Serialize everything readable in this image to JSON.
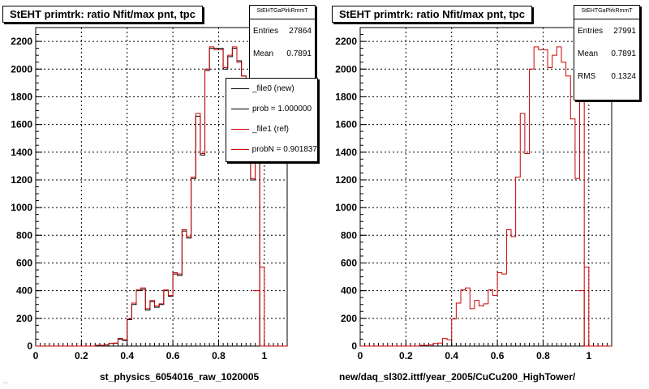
{
  "footer_text": "...",
  "colors": {
    "new": "#000000",
    "ref": "#cc0000",
    "grid": "#000000"
  },
  "chart_data": [
    {
      "type": "line",
      "title": "StEHT primtrk: ratio Nfit/max pnt, tpc",
      "xlabel": "st_physics_6054016_raw_1020005",
      "xlim": [
        0,
        1.1
      ],
      "ylim": [
        0,
        2300
      ],
      "xticks": [
        "0",
        "0.2",
        "0.4",
        "0.6",
        "0.8",
        "1"
      ],
      "yticks": [
        "0",
        "200",
        "400",
        "600",
        "800",
        "1000",
        "1200",
        "1400",
        "1600",
        "1800",
        "2000",
        "2200"
      ],
      "grid": true,
      "stats": {
        "name": "StEHTGaPlrkRmmT",
        "rows": [
          {
            "label": "Entries",
            "value": "27864"
          },
          {
            "label": "Mean",
            "value": "0.7891"
          }
        ]
      },
      "legend": [
        {
          "label": "_file0 (new)",
          "color": "#000000"
        },
        {
          "label": "prob = 1.000000",
          "color": "#000000"
        },
        {
          "label": "_file1 (ref)",
          "color": "#cc0000"
        },
        {
          "label": "probN = 0.901837",
          "color": "#cc0000"
        }
      ],
      "bin_edges": [
        0.26,
        0.28,
        0.3,
        0.32,
        0.34,
        0.36,
        0.38,
        0.4,
        0.42,
        0.44,
        0.46,
        0.48,
        0.5,
        0.52,
        0.54,
        0.56,
        0.58,
        0.6,
        0.62,
        0.64,
        0.66,
        0.68,
        0.7,
        0.72,
        0.74,
        0.76,
        0.78,
        0.8,
        0.82,
        0.84,
        0.86,
        0.88,
        0.9,
        0.92,
        0.94,
        0.96,
        0.98,
        1.0
      ],
      "series": [
        {
          "name": "_file0 (new)",
          "values": [
            5,
            5,
            8,
            20,
            20,
            50,
            40,
            190,
            300,
            400,
            410,
            260,
            320,
            280,
            300,
            400,
            360,
            520,
            510,
            830,
            780,
            1210,
            1660,
            1380,
            1990,
            2150,
            2150,
            2150,
            2000,
            2090,
            2150,
            2060,
            1950,
            1630,
            1200,
            1950,
            0
          ]
        },
        {
          "name": "_file1 (ref)",
          "values": [
            5,
            5,
            8,
            20,
            22,
            55,
            45,
            195,
            310,
            405,
            420,
            270,
            330,
            290,
            305,
            405,
            365,
            530,
            520,
            840,
            790,
            1220,
            1680,
            1390,
            2000,
            2160,
            2140,
            2140,
            2010,
            2100,
            2160,
            2050,
            1950,
            1640,
            1210,
            1960,
            0
          ]
        }
      ],
      "tail": {
        "x": 0.98,
        "values": [
          570,
          400
        ]
      }
    },
    {
      "type": "line",
      "title": "StEHT primtrk: ratio Nfit/max pnt, tpc",
      "xlabel": "new/daq_sl302.ittf/year_2005/CuCu200_HighTower/",
      "xlim": [
        0,
        1.1
      ],
      "ylim": [
        0,
        2300
      ],
      "xticks": [
        "0",
        "0.2",
        "0.4",
        "0.6",
        "0.8",
        "1"
      ],
      "yticks": [
        "0",
        "200",
        "400",
        "600",
        "800",
        "1000",
        "1200",
        "1400",
        "1600",
        "1800",
        "2000",
        "2200"
      ],
      "grid": true,
      "stats": {
        "name": "StEHTGaPlrkRmmT",
        "rows": [
          {
            "label": "Entries",
            "value": "27991"
          },
          {
            "label": "Mean",
            "value": "0.7891"
          },
          {
            "label": "RMS",
            "value": "0.1324"
          }
        ]
      },
      "bin_edges": [
        0.26,
        0.28,
        0.3,
        0.32,
        0.34,
        0.36,
        0.38,
        0.4,
        0.42,
        0.44,
        0.46,
        0.48,
        0.5,
        0.52,
        0.54,
        0.56,
        0.58,
        0.6,
        0.62,
        0.64,
        0.66,
        0.68,
        0.7,
        0.72,
        0.74,
        0.76,
        0.78,
        0.8,
        0.82,
        0.84,
        0.86,
        0.88,
        0.9,
        0.92,
        0.94,
        0.96,
        0.98,
        1.0
      ],
      "series": [
        {
          "name": "_file1 (ref)",
          "values": [
            5,
            5,
            8,
            20,
            22,
            55,
            45,
            195,
            310,
            405,
            420,
            270,
            330,
            290,
            305,
            405,
            365,
            530,
            520,
            840,
            790,
            1220,
            1680,
            1390,
            2000,
            2160,
            2140,
            2140,
            2010,
            2100,
            2160,
            2050,
            1950,
            1640,
            1210,
            1960,
            0
          ]
        }
      ],
      "tail": {
        "x": 0.98,
        "values": [
          570,
          400
        ]
      }
    }
  ]
}
